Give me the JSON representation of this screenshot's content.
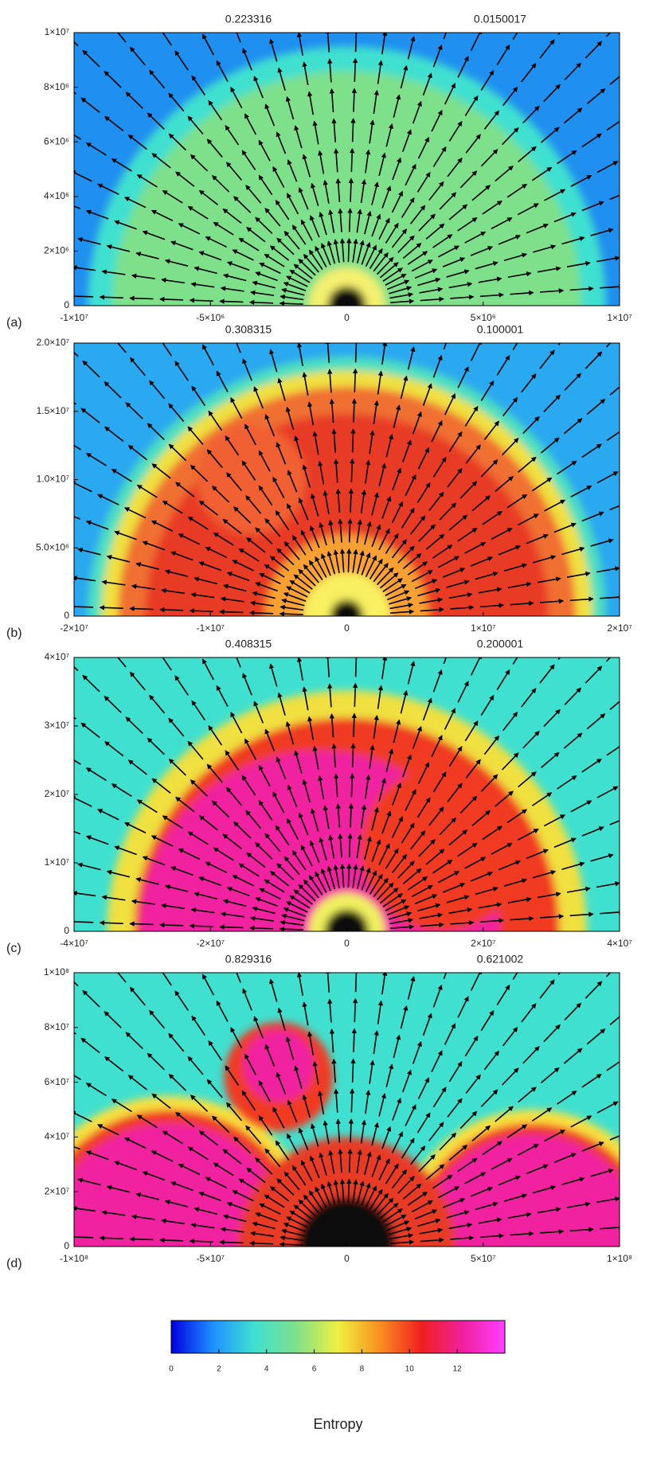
{
  "chart_data": [
    {
      "type": "field",
      "label": "(a)",
      "annotations": [
        "0.223316",
        "0.0150017"
      ],
      "xlim": [
        -10000000,
        10000000
      ],
      "ylim": [
        0,
        10000000
      ],
      "xticks": [
        {
          "value": -10000000,
          "label": "-1×10⁷"
        },
        {
          "value": -5000000,
          "label": "-5×10⁶"
        },
        0,
        {
          "value": 5000000,
          "label": "5×10⁶"
        },
        {
          "value": 10000000,
          "label": "1×10⁷"
        }
      ],
      "yticks": [
        0,
        {
          "value": 2000000,
          "label": "2×10⁶"
        },
        {
          "value": 4000000,
          "label": "4×10⁶"
        },
        {
          "value": 6000000,
          "label": "6×10⁶"
        },
        {
          "value": 8000000,
          "label": "8×10⁶"
        },
        {
          "value": 10000000,
          "label": "1×10⁷"
        }
      ]
    },
    {
      "type": "field",
      "label": "(b)",
      "annotations": [
        "0.308315",
        "0.100001"
      ],
      "xlim": [
        -20000000,
        20000000
      ],
      "ylim": [
        0,
        20000000
      ],
      "xticks": [
        {
          "value": -20000000,
          "label": "-2×10⁷"
        },
        {
          "value": -10000000,
          "label": "-1×10⁷"
        },
        0,
        {
          "value": 10000000,
          "label": "1×10⁷"
        },
        {
          "value": 20000000,
          "label": "2×10⁷"
        }
      ],
      "yticks": [
        0,
        {
          "value": 5000000,
          "label": "5.0×10⁶"
        },
        {
          "value": 10000000,
          "label": "1.0×10⁷"
        },
        {
          "value": 15000000,
          "label": "1.5×10⁷"
        },
        {
          "value": 20000000,
          "label": "2.0×10⁷"
        }
      ]
    },
    {
      "type": "field",
      "label": "(c)",
      "annotations": [
        "0.408315",
        "0.200001"
      ],
      "xlim": [
        -40000000,
        40000000
      ],
      "ylim": [
        0,
        40000000
      ],
      "xticks": [
        {
          "value": -40000000,
          "label": "-4×10⁷"
        },
        {
          "value": -20000000,
          "label": "-2×10⁷"
        },
        0,
        {
          "value": 20000000,
          "label": "2×10⁷"
        },
        {
          "value": 40000000,
          "label": "4×10⁷"
        }
      ],
      "yticks": [
        0,
        {
          "value": 10000000,
          "label": "1×10⁷"
        },
        {
          "value": 20000000,
          "label": "2×10⁷"
        },
        {
          "value": 30000000,
          "label": "3×10⁷"
        },
        {
          "value": 40000000,
          "label": "4×10⁷"
        }
      ]
    },
    {
      "type": "field",
      "label": "(d)",
      "annotations": [
        "0.829316",
        "0.621002"
      ],
      "xlim": [
        -100000000,
        100000000
      ],
      "ylim": [
        0,
        100000000
      ],
      "xticks": [
        {
          "value": -100000000,
          "label": "-1×10⁸"
        },
        {
          "value": -50000000,
          "label": "-5×10⁷"
        },
        0,
        {
          "value": 50000000,
          "label": "5×10⁷"
        },
        {
          "value": 100000000,
          "label": "1×10⁸"
        }
      ],
      "yticks": [
        0,
        {
          "value": 20000000,
          "label": "2×10⁷"
        },
        {
          "value": 40000000,
          "label": "4×10⁷"
        },
        {
          "value": 60000000,
          "label": "6×10⁷"
        },
        {
          "value": 80000000,
          "label": "8×10⁷"
        },
        {
          "value": 100000000,
          "label": "1×10⁸"
        }
      ]
    },
    {
      "type": "colorbar",
      "xlabel": "Entropy",
      "xlim": [
        0,
        14
      ],
      "xticks": [
        0,
        2,
        4,
        6,
        8,
        10,
        12
      ],
      "colors": [
        "#0000e0",
        "#1e90ff",
        "#40e0d0",
        "#7ee08a",
        "#f0f040",
        "#f89020",
        "#f02020",
        "#f020a0",
        "#ff40ff"
      ]
    }
  ]
}
